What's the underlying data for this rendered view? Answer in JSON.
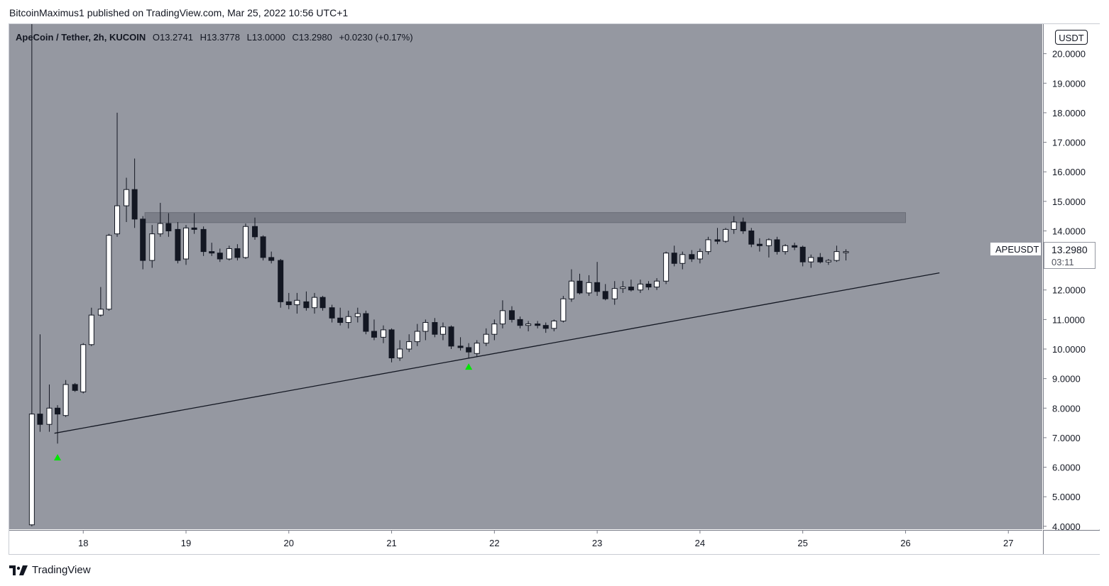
{
  "caption": "BitcoinMaximus1 published on TradingView.com, Mar 25, 2022 10:56 UTC+1",
  "brand": {
    "name": "TradingView",
    "logo_icon": "tradingview-logo-icon"
  },
  "legend": {
    "symbol": "ApeCoin / Tether, 2h, KUCOIN",
    "open_label": "O",
    "open": "13.2741",
    "high_label": "H",
    "high": "13.3778",
    "low_label": "L",
    "low": "13.0000",
    "close_label": "C",
    "close": "13.2980",
    "change": "+0.0230 (+0.17%)"
  },
  "price_axis": {
    "unit": "USDT"
  },
  "last_price": {
    "symbol": "APEUSDT",
    "price": "13.2980",
    "countdown": "03:11"
  },
  "colors": {
    "background": "#9598a1",
    "up_body": "#ffffff",
    "down_body": "#131722",
    "wick": "#131722",
    "marker": "#00e600",
    "zone": "#7b7e88"
  },
  "chart_data": {
    "type": "candlestick",
    "interval": "2h",
    "xlim": [
      17.28,
      27.33
    ],
    "ylim": [
      3.9,
      21.0
    ],
    "y_ticks": [
      "4.0000",
      "5.0000",
      "6.0000",
      "7.0000",
      "8.0000",
      "9.0000",
      "10.0000",
      "11.0000",
      "12.0000",
      "13.0000",
      "14.0000",
      "15.0000",
      "16.0000",
      "17.0000",
      "18.0000",
      "19.0000",
      "20.0000"
    ],
    "x_ticks": [
      {
        "x": 18,
        "label": "18"
      },
      {
        "x": 19,
        "label": "19"
      },
      {
        "x": 20,
        "label": "20"
      },
      {
        "x": 21,
        "label": "21"
      },
      {
        "x": 22,
        "label": "22"
      },
      {
        "x": 23,
        "label": "23"
      },
      {
        "x": 24,
        "label": "24"
      },
      {
        "x": 25,
        "label": "25"
      },
      {
        "x": 26,
        "label": "26"
      },
      {
        "x": 27,
        "label": "27"
      }
    ],
    "candles": [
      {
        "t": 17.5,
        "o": 4.05,
        "h": 21.0,
        "l": 4.0,
        "c": 7.8
      },
      {
        "t": 17.58,
        "o": 7.8,
        "h": 10.5,
        "l": 7.2,
        "c": 7.45
      },
      {
        "t": 17.67,
        "o": 7.45,
        "h": 8.8,
        "l": 7.2,
        "c": 8.0
      },
      {
        "t": 17.75,
        "o": 8.0,
        "h": 8.1,
        "l": 6.8,
        "c": 7.8
      },
      {
        "t": 17.83,
        "o": 7.75,
        "h": 8.95,
        "l": 7.7,
        "c": 8.8
      },
      {
        "t": 17.92,
        "o": 8.8,
        "h": 8.85,
        "l": 8.55,
        "c": 8.6
      },
      {
        "t": 18.0,
        "o": 8.55,
        "h": 10.2,
        "l": 8.5,
        "c": 10.15
      },
      {
        "t": 18.08,
        "o": 10.15,
        "h": 11.4,
        "l": 10.1,
        "c": 11.15
      },
      {
        "t": 18.17,
        "o": 11.15,
        "h": 12.1,
        "l": 11.1,
        "c": 11.35
      },
      {
        "t": 18.25,
        "o": 11.35,
        "h": 13.9,
        "l": 11.3,
        "c": 13.85
      },
      {
        "t": 18.33,
        "o": 13.9,
        "h": 18.0,
        "l": 13.8,
        "c": 14.85
      },
      {
        "t": 18.42,
        "o": 14.85,
        "h": 15.8,
        "l": 14.3,
        "c": 15.4
      },
      {
        "t": 18.5,
        "o": 15.4,
        "h": 16.45,
        "l": 14.1,
        "c": 14.4
      },
      {
        "t": 18.58,
        "o": 14.4,
        "h": 14.5,
        "l": 12.7,
        "c": 13.0
      },
      {
        "t": 18.67,
        "o": 13.0,
        "h": 14.2,
        "l": 12.75,
        "c": 13.9
      },
      {
        "t": 18.75,
        "o": 13.9,
        "h": 14.95,
        "l": 13.8,
        "c": 14.25
      },
      {
        "t": 18.83,
        "o": 14.25,
        "h": 14.6,
        "l": 13.8,
        "c": 14.0
      },
      {
        "t": 18.92,
        "o": 14.05,
        "h": 14.3,
        "l": 12.9,
        "c": 13.0
      },
      {
        "t": 19.0,
        "o": 13.05,
        "h": 14.2,
        "l": 12.85,
        "c": 14.1
      },
      {
        "t": 19.08,
        "o": 14.1,
        "h": 14.6,
        "l": 13.9,
        "c": 14.05
      },
      {
        "t": 19.17,
        "o": 14.05,
        "h": 14.15,
        "l": 13.15,
        "c": 13.3
      },
      {
        "t": 19.25,
        "o": 13.3,
        "h": 13.6,
        "l": 13.15,
        "c": 13.25
      },
      {
        "t": 19.33,
        "o": 13.25,
        "h": 13.4,
        "l": 12.95,
        "c": 13.05
      },
      {
        "t": 19.42,
        "o": 13.05,
        "h": 13.5,
        "l": 13.0,
        "c": 13.4
      },
      {
        "t": 19.5,
        "o": 13.4,
        "h": 13.55,
        "l": 13.0,
        "c": 13.1
      },
      {
        "t": 19.58,
        "o": 13.1,
        "h": 14.25,
        "l": 13.05,
        "c": 14.15
      },
      {
        "t": 19.67,
        "o": 14.15,
        "h": 14.45,
        "l": 13.7,
        "c": 13.8
      },
      {
        "t": 19.75,
        "o": 13.8,
        "h": 13.85,
        "l": 13.0,
        "c": 13.1
      },
      {
        "t": 19.83,
        "o": 13.1,
        "h": 13.3,
        "l": 12.9,
        "c": 13.0
      },
      {
        "t": 19.92,
        "o": 13.0,
        "h": 13.05,
        "l": 11.4,
        "c": 11.6
      },
      {
        "t": 20.0,
        "o": 11.6,
        "h": 11.9,
        "l": 11.35,
        "c": 11.5
      },
      {
        "t": 20.08,
        "o": 11.5,
        "h": 11.9,
        "l": 11.2,
        "c": 11.65
      },
      {
        "t": 20.17,
        "o": 11.6,
        "h": 11.95,
        "l": 11.3,
        "c": 11.4
      },
      {
        "t": 20.25,
        "o": 11.4,
        "h": 11.9,
        "l": 11.2,
        "c": 11.75
      },
      {
        "t": 20.33,
        "o": 11.75,
        "h": 11.8,
        "l": 11.3,
        "c": 11.4
      },
      {
        "t": 20.42,
        "o": 11.4,
        "h": 11.5,
        "l": 10.9,
        "c": 11.05
      },
      {
        "t": 20.5,
        "o": 11.05,
        "h": 11.4,
        "l": 10.8,
        "c": 10.9
      },
      {
        "t": 20.58,
        "o": 10.9,
        "h": 11.3,
        "l": 10.7,
        "c": 11.1
      },
      {
        "t": 20.67,
        "o": 11.1,
        "h": 11.4,
        "l": 10.9,
        "c": 11.2
      },
      {
        "t": 20.75,
        "o": 11.2,
        "h": 11.3,
        "l": 10.5,
        "c": 10.6
      },
      {
        "t": 20.83,
        "o": 10.6,
        "h": 11.0,
        "l": 10.3,
        "c": 10.4
      },
      {
        "t": 20.92,
        "o": 10.4,
        "h": 10.8,
        "l": 10.2,
        "c": 10.65
      },
      {
        "t": 21.0,
        "o": 10.65,
        "h": 10.7,
        "l": 9.55,
        "c": 9.7
      },
      {
        "t": 21.08,
        "o": 9.7,
        "h": 10.3,
        "l": 9.6,
        "c": 10.0
      },
      {
        "t": 21.17,
        "o": 10.0,
        "h": 10.5,
        "l": 9.9,
        "c": 10.25
      },
      {
        "t": 21.25,
        "o": 10.25,
        "h": 10.85,
        "l": 10.1,
        "c": 10.6
      },
      {
        "t": 21.33,
        "o": 10.6,
        "h": 11.0,
        "l": 10.3,
        "c": 10.9
      },
      {
        "t": 21.42,
        "o": 10.9,
        "h": 11.05,
        "l": 10.4,
        "c": 10.5
      },
      {
        "t": 21.5,
        "o": 10.5,
        "h": 10.9,
        "l": 10.3,
        "c": 10.75
      },
      {
        "t": 21.58,
        "o": 10.75,
        "h": 10.8,
        "l": 10.0,
        "c": 10.1
      },
      {
        "t": 21.67,
        "o": 10.1,
        "h": 10.4,
        "l": 9.95,
        "c": 10.05
      },
      {
        "t": 21.75,
        "o": 10.05,
        "h": 10.2,
        "l": 9.7,
        "c": 9.9
      },
      {
        "t": 21.83,
        "o": 9.85,
        "h": 10.3,
        "l": 9.75,
        "c": 10.2
      },
      {
        "t": 21.92,
        "o": 10.2,
        "h": 10.7,
        "l": 10.1,
        "c": 10.5
      },
      {
        "t": 22.0,
        "o": 10.5,
        "h": 11.0,
        "l": 10.3,
        "c": 10.85
      },
      {
        "t": 22.08,
        "o": 10.85,
        "h": 11.65,
        "l": 10.7,
        "c": 11.3
      },
      {
        "t": 22.17,
        "o": 11.3,
        "h": 11.45,
        "l": 10.9,
        "c": 11.0
      },
      {
        "t": 22.25,
        "o": 11.0,
        "h": 11.1,
        "l": 10.7,
        "c": 10.8
      },
      {
        "t": 22.33,
        "o": 10.8,
        "h": 10.95,
        "l": 10.6,
        "c": 10.85
      },
      {
        "t": 22.42,
        "o": 10.85,
        "h": 10.95,
        "l": 10.7,
        "c": 10.8
      },
      {
        "t": 22.5,
        "o": 10.8,
        "h": 10.9,
        "l": 10.55,
        "c": 10.7
      },
      {
        "t": 22.58,
        "o": 10.7,
        "h": 11.0,
        "l": 10.6,
        "c": 10.95
      },
      {
        "t": 22.67,
        "o": 10.95,
        "h": 11.8,
        "l": 10.9,
        "c": 11.7
      },
      {
        "t": 22.75,
        "o": 11.7,
        "h": 12.7,
        "l": 11.6,
        "c": 12.3
      },
      {
        "t": 22.83,
        "o": 12.3,
        "h": 12.55,
        "l": 11.85,
        "c": 11.9
      },
      {
        "t": 22.92,
        "o": 11.9,
        "h": 12.5,
        "l": 11.8,
        "c": 12.25
      },
      {
        "t": 23.0,
        "o": 12.25,
        "h": 12.95,
        "l": 11.8,
        "c": 11.95
      },
      {
        "t": 23.08,
        "o": 11.95,
        "h": 12.2,
        "l": 11.65,
        "c": 11.7
      },
      {
        "t": 23.17,
        "o": 11.7,
        "h": 12.3,
        "l": 11.5,
        "c": 12.05
      },
      {
        "t": 23.25,
        "o": 12.05,
        "h": 12.3,
        "l": 11.9,
        "c": 12.1
      },
      {
        "t": 23.33,
        "o": 12.1,
        "h": 12.35,
        "l": 11.95,
        "c": 12.0
      },
      {
        "t": 23.42,
        "o": 12.0,
        "h": 12.35,
        "l": 11.9,
        "c": 12.2
      },
      {
        "t": 23.5,
        "o": 12.2,
        "h": 12.3,
        "l": 12.0,
        "c": 12.1
      },
      {
        "t": 23.58,
        "o": 12.1,
        "h": 12.4,
        "l": 12.0,
        "c": 12.3
      },
      {
        "t": 23.67,
        "o": 12.3,
        "h": 13.3,
        "l": 12.2,
        "c": 13.25
      },
      {
        "t": 23.75,
        "o": 13.25,
        "h": 13.5,
        "l": 12.8,
        "c": 12.9
      },
      {
        "t": 23.83,
        "o": 12.9,
        "h": 13.3,
        "l": 12.7,
        "c": 13.2
      },
      {
        "t": 23.92,
        "o": 13.2,
        "h": 13.35,
        "l": 12.95,
        "c": 13.05
      },
      {
        "t": 24.0,
        "o": 13.05,
        "h": 13.4,
        "l": 12.9,
        "c": 13.3
      },
      {
        "t": 24.08,
        "o": 13.3,
        "h": 13.8,
        "l": 13.2,
        "c": 13.7
      },
      {
        "t": 24.17,
        "o": 13.7,
        "h": 14.1,
        "l": 13.55,
        "c": 13.65
      },
      {
        "t": 24.25,
        "o": 13.65,
        "h": 14.1,
        "l": 13.6,
        "c": 14.05
      },
      {
        "t": 24.33,
        "o": 14.05,
        "h": 14.5,
        "l": 13.9,
        "c": 14.3
      },
      {
        "t": 24.42,
        "o": 14.3,
        "h": 14.45,
        "l": 13.9,
        "c": 14.0
      },
      {
        "t": 24.5,
        "o": 14.0,
        "h": 14.1,
        "l": 13.45,
        "c": 13.55
      },
      {
        "t": 24.58,
        "o": 13.55,
        "h": 13.75,
        "l": 13.3,
        "c": 13.5
      },
      {
        "t": 24.67,
        "o": 13.5,
        "h": 13.75,
        "l": 13.1,
        "c": 13.7
      },
      {
        "t": 24.75,
        "o": 13.7,
        "h": 13.8,
        "l": 13.2,
        "c": 13.3
      },
      {
        "t": 24.83,
        "o": 13.3,
        "h": 13.55,
        "l": 13.2,
        "c": 13.5
      },
      {
        "t": 24.92,
        "o": 13.5,
        "h": 13.6,
        "l": 13.35,
        "c": 13.45
      },
      {
        "t": 25.0,
        "o": 13.45,
        "h": 13.5,
        "l": 12.8,
        "c": 12.95
      },
      {
        "t": 25.08,
        "o": 12.95,
        "h": 13.2,
        "l": 12.75,
        "c": 13.1
      },
      {
        "t": 25.17,
        "o": 13.1,
        "h": 13.25,
        "l": 12.9,
        "c": 12.95
      },
      {
        "t": 25.25,
        "o": 12.95,
        "h": 13.05,
        "l": 12.85,
        "c": 13.0
      },
      {
        "t": 25.33,
        "o": 13.0,
        "h": 13.5,
        "l": 12.95,
        "c": 13.3
      },
      {
        "t": 25.42,
        "o": 13.2741,
        "h": 13.3778,
        "l": 13.0,
        "c": 13.298
      }
    ],
    "annotations": {
      "resistance_zone": {
        "x0": 18.6,
        "x1": 26.0,
        "y0": 14.28,
        "y1": 14.62
      },
      "trendline": {
        "x0": 17.72,
        "y0": 7.15,
        "x1": 26.33,
        "y1": 12.58
      },
      "markers": [
        {
          "x": 17.75,
          "y": 6.35,
          "type": "up-arrow"
        },
        {
          "x": 21.75,
          "y": 9.42,
          "type": "up-arrow"
        }
      ]
    }
  }
}
